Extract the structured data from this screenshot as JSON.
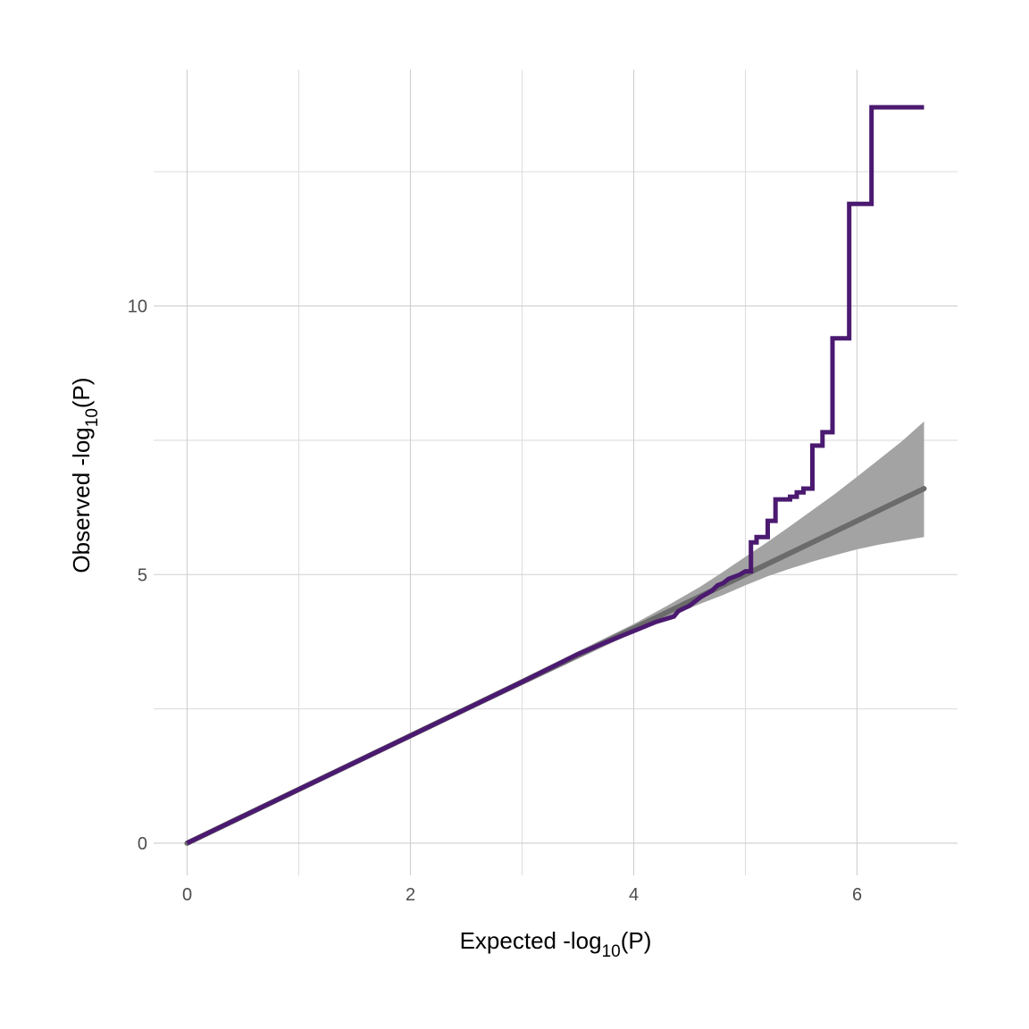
{
  "chart_data": {
    "type": "line",
    "title": "",
    "xlabel": {
      "pre": "Expected -log",
      "sub": "10",
      "post": "(P)"
    },
    "ylabel": {
      "pre": "Observed -log",
      "sub": "10",
      "post": "(P)"
    },
    "xlim": [
      -0.3,
      6.9
    ],
    "ylim": [
      -0.6,
      14.4
    ],
    "x_ticks": [
      0,
      2,
      4,
      6
    ],
    "x_tick_labels": [
      "0",
      "2",
      "4",
      "6"
    ],
    "x_minor": [
      1,
      3,
      5
    ],
    "y_ticks": [
      0,
      5,
      10
    ],
    "y_tick_labels": [
      "0",
      "5",
      "10"
    ],
    "y_minor": [
      2.5,
      7.5,
      12.5
    ],
    "grid": true,
    "legend": "none",
    "colors": {
      "observed": "#4b1a70",
      "expected": "#6b6b6b",
      "band": "#a3a3a3"
    },
    "series": [
      {
        "kind": "expected-line",
        "x": [
          0,
          6.6
        ],
        "y": [
          0,
          6.6
        ]
      },
      {
        "kind": "confidence-band",
        "x": [
          0,
          2,
          3,
          4,
          4.3,
          4.6,
          4.8,
          5.0,
          5.2,
          5.4,
          5.6,
          5.8,
          6.0,
          6.2,
          6.4,
          6.6
        ],
        "upper": [
          0.02,
          2.04,
          3.06,
          4.08,
          4.42,
          4.78,
          5.05,
          5.33,
          5.61,
          5.9,
          6.2,
          6.5,
          6.82,
          7.15,
          7.48,
          7.85
        ],
        "lower": [
          -0.02,
          1.96,
          2.94,
          3.92,
          4.2,
          4.46,
          4.62,
          4.8,
          4.97,
          5.11,
          5.24,
          5.36,
          5.47,
          5.56,
          5.63,
          5.7
        ]
      },
      {
        "kind": "observed-step",
        "x": [
          0,
          1,
          2,
          3,
          3.5,
          3.8,
          4.0,
          4.2,
          4.36,
          4.4,
          4.5,
          4.6,
          4.7,
          4.75,
          4.8,
          4.85,
          4.9,
          4.95,
          5.0,
          5.05,
          5.05,
          5.1,
          5.1,
          5.2,
          5.2,
          5.27,
          5.27,
          5.4,
          5.4,
          5.46,
          5.46,
          5.52,
          5.52,
          5.6,
          5.6,
          5.69,
          5.69,
          5.78,
          5.78,
          5.93,
          5.93,
          6.13,
          6.13,
          6.6
        ],
        "y": [
          0,
          1,
          2,
          3,
          3.52,
          3.78,
          3.95,
          4.12,
          4.22,
          4.32,
          4.42,
          4.58,
          4.7,
          4.8,
          4.84,
          4.92,
          4.96,
          5.0,
          5.06,
          5.06,
          5.6,
          5.6,
          5.7,
          5.7,
          6.0,
          6.0,
          6.4,
          6.4,
          6.45,
          6.45,
          6.53,
          6.53,
          6.6,
          6.6,
          7.4,
          7.4,
          7.65,
          7.65,
          9.4,
          9.4,
          11.9,
          11.9,
          13.7,
          13.7
        ]
      }
    ]
  }
}
